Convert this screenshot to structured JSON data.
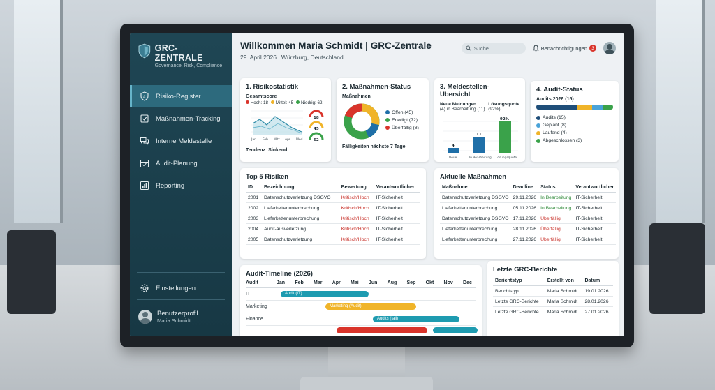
{
  "sidebar": {
    "brand_title": "GRC-ZENTRALE",
    "brand_sub": "Governance, Risk, Compliance",
    "items": [
      {
        "label": "Risiko-Register",
        "icon": "shield-icon"
      },
      {
        "label": "Maßnahmen-Tracking",
        "icon": "checklist-icon"
      },
      {
        "label": "Interne Meldestelle",
        "icon": "chat-icon"
      },
      {
        "label": "Audit-Planung",
        "icon": "calendar-icon"
      },
      {
        "label": "Reporting",
        "icon": "bar-chart-icon"
      }
    ],
    "settings": "Einstellungen",
    "profile_label": "Benutzerprofil",
    "profile_name": "Maria Schmidt"
  },
  "header": {
    "title": "Willkommen Maria Schmidt | GRC-Zentrale",
    "subtitle": "29. April 2026 | Würzburg, Deutschland",
    "search_placeholder": "Suche...",
    "notifications_label": "Benachrichtigungen",
    "notifications_count": "3"
  },
  "risk": {
    "title": "1. Risikostatistik",
    "subtitle": "Gesamtscore",
    "hoch": "Hoch: 18",
    "mittel": "Mittel: 45",
    "niedrig": "Niedrig: 62",
    "tendency": "Tendenz: Sinkend",
    "gauges": [
      "18",
      "45",
      "62"
    ],
    "months": [
      "Jan",
      "Feb",
      "Mitt",
      "Apr",
      "Med"
    ]
  },
  "measures": {
    "title": "2. Maßnahmen-Status",
    "subtitle": "Maßnahmen",
    "legend": [
      "Offen (45)",
      "Erledigt (72)",
      "Überfällig (8)"
    ],
    "footer": "Fälligkeiten nächste 7 Tage"
  },
  "report_office": {
    "title": "3. Meldestellen-Übersicht",
    "col1": "Neue Meldungen",
    "col1_sub": "(4) in Bearbeitung (11)",
    "col2": "Lösungsquote",
    "col2_sub": "(92%)",
    "bars": [
      {
        "label": "Neue",
        "value": "4"
      },
      {
        "label": "In Bearbeitung",
        "value": "11"
      },
      {
        "label": "Lösungsquote",
        "value": "92%"
      }
    ]
  },
  "audit_status": {
    "title": "4. Audit-Status",
    "subtitle": "Audits 2026 (15)",
    "legend": [
      "Audits (15)",
      "Geplant (8)",
      "Laufend (4)",
      "Abgeschlossen (3)"
    ]
  },
  "top_risks": {
    "title": "Top 5 Risiken",
    "headers": [
      "ID",
      "Bezeichnung",
      "Bewertung",
      "Verantwortlicher"
    ],
    "rows": [
      [
        "2001",
        "Datenschutzverletzung DSGVO",
        "Kritisch/Hoch",
        "IT-Sicherheit"
      ],
      [
        "2002",
        "Lieferkettenunterbrechung",
        "Kritisch/Hoch",
        "IT-Sicherheit"
      ],
      [
        "2003",
        "Lieferkettenunterbrechung",
        "Kritisch/Hoch",
        "IT-Sicherheit"
      ],
      [
        "2004",
        "Audit-ausverletzung",
        "Kritisch/Hoch",
        "IT-Sicherheit"
      ],
      [
        "2005",
        "Datenschutzverletzung",
        "Kritisch/Hoch",
        "IT-Sicherheit"
      ]
    ]
  },
  "current_measures": {
    "title": "Aktuelle Maßnahmen",
    "headers": [
      "Maßnahme",
      "Deadline",
      "Status",
      "Verantwortlicher"
    ],
    "rows": [
      [
        "Datenschutzverletzung DSGVO",
        "29.11.2026",
        "In Bearbeitung",
        "IT-Sicherheit"
      ],
      [
        "Lieferkettenunterbrechung",
        "05.11.2026",
        "In Bearbeitung",
        "IT-Sicherheit"
      ],
      [
        "Datenschutzverletzung DSGVO",
        "17.11.2026",
        "Überfällig",
        "IT-Sicherheit"
      ],
      [
        "Lieferkettenunterbrechung",
        "28.11.2026",
        "Überfällig",
        "IT-Sicherheit"
      ],
      [
        "Lieferkettenunterbrechung",
        "27.11.2026",
        "Überfällig",
        "IT-Sicherheit"
      ]
    ]
  },
  "timeline": {
    "title": "Audit-Timeline (2026)",
    "label_col": "Audit",
    "months": [
      "Jan",
      "Feb",
      "Mar",
      "Apr",
      "Mai",
      "Jun",
      "Aug",
      "Sep",
      "Okt",
      "Nov",
      "Dec"
    ],
    "rows": [
      "IT",
      "Marketing",
      "Finance"
    ],
    "bars": [
      "Audit (IT)",
      "Marketing (Audit)",
      "Audits (Iali)"
    ]
  },
  "reports": {
    "title": "Letzte GRC-Berichte",
    "headers": [
      "Berichtstyp",
      "Erstellt von",
      "Datum"
    ],
    "rows": [
      [
        "Berichtstyp",
        "Maria Schmidt",
        "19.01.2026"
      ],
      [
        "Letzte GRC-Berichte",
        "Maria Schmidt",
        "28.01.2026"
      ],
      [
        "Letzte GRC-Berichte",
        "Maria Schmidt",
        "27.01.2026"
      ]
    ]
  },
  "colors": {
    "sidebar": "#1f4654",
    "accent_teal": "#1e9bb0",
    "green": "#3aa24a",
    "yellow": "#f0b429",
    "red": "#d9342b",
    "blue": "#1f6fa8"
  }
}
